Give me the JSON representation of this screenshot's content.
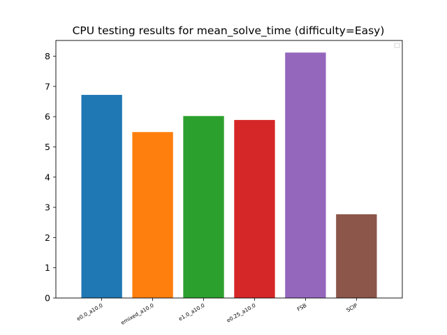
{
  "chart_data": {
    "type": "bar",
    "title": "CPU testing results for mean_solve_time (difficulty=Easy)",
    "xlabel": "",
    "ylabel": "",
    "categories": [
      "e0.0_a10.0",
      "emixed_a10.0",
      "e1.0_a10.0",
      "e0.25_a10.0",
      "FSB",
      "SCIP"
    ],
    "values": [
      6.72,
      5.49,
      6.02,
      5.89,
      8.12,
      2.77
    ],
    "colors": [
      "#1f77b4",
      "#ff7f0e",
      "#2ca02c",
      "#d62728",
      "#9467bd",
      "#8c564b"
    ],
    "ylim": [
      0,
      8.52
    ],
    "yticks": [
      0,
      1,
      2,
      3,
      4,
      5,
      6,
      7,
      8
    ],
    "grid": false,
    "legend": {
      "placement": "top-right",
      "entries": []
    }
  }
}
